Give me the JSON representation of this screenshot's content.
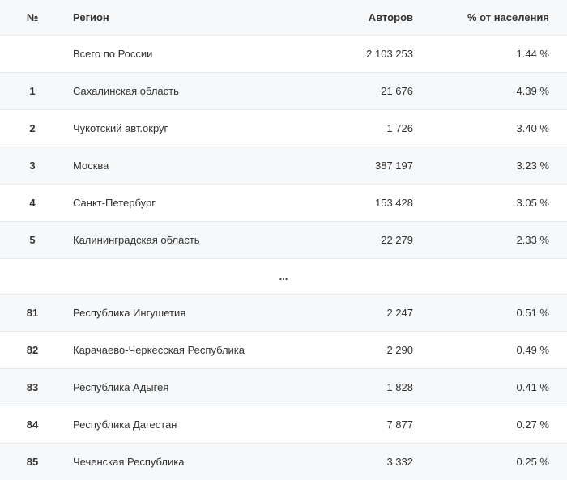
{
  "table": {
    "headers": {
      "num": "№",
      "region": "Регион",
      "authors": "Авторов",
      "percent": "% от населения"
    },
    "colors": {
      "header_bg": "#f6f8fa",
      "row_alt_bg": "#f6f8fa",
      "row_bg": "#ffffff",
      "border": "#e5e9ec",
      "text": "#333333"
    },
    "font_size": 13,
    "ellipsis": "...",
    "rows_top": [
      {
        "num": "",
        "region": "Всего по России",
        "authors": "2 103 253",
        "percent": "1.44 %"
      },
      {
        "num": "1",
        "region": "Сахалинская область",
        "authors": "21 676",
        "percent": "4.39 %"
      },
      {
        "num": "2",
        "region": "Чукотский авт.округ",
        "authors": "1 726",
        "percent": "3.40 %"
      },
      {
        "num": "3",
        "region": "Москва",
        "authors": "387 197",
        "percent": "3.23 %"
      },
      {
        "num": "4",
        "region": "Санкт-Петербург",
        "authors": "153 428",
        "percent": "3.05 %"
      },
      {
        "num": "5",
        "region": "Калининградская область",
        "authors": "22 279",
        "percent": "2.33 %"
      }
    ],
    "rows_bottom": [
      {
        "num": "81",
        "region": "Республика Ингушетия",
        "authors": "2 247",
        "percent": "0.51 %"
      },
      {
        "num": "82",
        "region": "Карачаево-Черкесская Республика",
        "authors": "2 290",
        "percent": "0.49 %"
      },
      {
        "num": "83",
        "region": "Республика Адыгея",
        "authors": "1 828",
        "percent": "0.41 %"
      },
      {
        "num": "84",
        "region": "Республика Дагестан",
        "authors": "7 877",
        "percent": "0.27 %"
      },
      {
        "num": "85",
        "region": "Чеченская Республика",
        "authors": "3 332",
        "percent": "0.25 %"
      }
    ]
  }
}
